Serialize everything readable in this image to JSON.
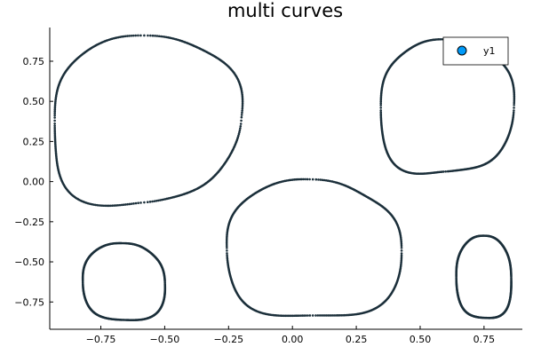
{
  "chart_data": {
    "type": "scatter",
    "title": "multi curves",
    "xlabel": "",
    "ylabel": "",
    "xlim": [
      -0.95,
      0.9
    ],
    "ylim": [
      -0.92,
      0.96
    ],
    "xticks": [
      -0.75,
      -0.5,
      -0.25,
      0.0,
      0.25,
      0.5,
      0.75
    ],
    "xtick_labels": [
      "−0.75",
      "−0.50",
      "−0.25",
      "0.00",
      "0.25",
      "0.50",
      "0.75"
    ],
    "yticks": [
      -0.75,
      -0.5,
      -0.25,
      0.0,
      0.25,
      0.5,
      0.75
    ],
    "ytick_labels": [
      "−0.75",
      "−0.50",
      "−0.25",
      "0.00",
      "0.25",
      "0.50",
      "0.75"
    ],
    "grid": false,
    "legend": {
      "position": "top-right",
      "entries": [
        {
          "label": "y1",
          "color": "#009af9"
        }
      ]
    },
    "marker_color": "#1b2f3a",
    "series": [
      {
        "name": "y1",
        "curves": [
          {
            "cx": -0.58,
            "cy": 0.38,
            "rx": 0.365,
            "ry": 0.52,
            "wobble": [
              0.05,
              0.04,
              0.02
            ]
          },
          {
            "cx": 0.6,
            "cy": 0.46,
            "rx": 0.25,
            "ry": 0.43,
            "wobble": [
              0.05,
              0.03,
              0.02
            ]
          },
          {
            "cx": 0.08,
            "cy": -0.43,
            "rx": 0.33,
            "ry": 0.44,
            "wobble": [
              0.04,
              0.03,
              0.02
            ]
          },
          {
            "cx": -0.66,
            "cy": -0.63,
            "rx": 0.16,
            "ry": 0.24,
            "wobble": [
              0.03,
              0.02,
              0.01
            ]
          },
          {
            "cx": 0.75,
            "cy": -0.6,
            "rx": 0.11,
            "ry": 0.25,
            "wobble": [
              0.03,
              0.02,
              0.01
            ]
          }
        ]
      }
    ]
  }
}
